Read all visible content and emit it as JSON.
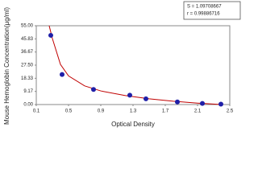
{
  "chart_data": {
    "type": "scatter",
    "x_label": "Optical Density",
    "y_label": "Mouse Hemoglobin Concentration(μg/ml)",
    "annotations": [
      "S = 1.09708667",
      "r = 0.99886716"
    ],
    "x": [
      0.28,
      0.42,
      0.81,
      1.26,
      1.46,
      1.85,
      2.16,
      2.39
    ],
    "values": [
      48.3,
      21,
      10.5,
      6.5,
      4,
      1.8,
      0.8,
      0.3
    ],
    "color": "#1f1fa8",
    "fit": {
      "x": [
        0.26,
        0.3,
        0.4,
        0.5,
        0.7,
        0.9,
        1.2,
        1.5,
        1.8,
        2.1,
        2.4
      ],
      "values": [
        55,
        46,
        28,
        20,
        13,
        9.5,
        6.3,
        4,
        2.3,
        1,
        0
      ],
      "color": "#c00000"
    },
    "xlim": [
      0.1,
      2.5
    ],
    "xticks": [
      0.1,
      0.5,
      0.9,
      1.3,
      1.7,
      2.1,
      2.5
    ],
    "ylim": [
      0,
      55
    ],
    "yticks": [
      {
        "value": 0,
        "label": "0.00"
      },
      {
        "value": 9.17,
        "label": "9.17"
      },
      {
        "value": 18.33,
        "label": "18.33"
      },
      {
        "value": 27.5,
        "label": "27.50"
      },
      {
        "value": 36.67,
        "label": "36.67"
      },
      {
        "value": 45.83,
        "label": "45.83"
      },
      {
        "value": 55,
        "label": "55.00"
      }
    ],
    "grid": false
  }
}
